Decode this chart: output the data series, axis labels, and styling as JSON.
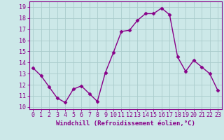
{
  "x": [
    0,
    1,
    2,
    3,
    4,
    5,
    6,
    7,
    8,
    9,
    10,
    11,
    12,
    13,
    14,
    15,
    16,
    17,
    18,
    19,
    20,
    21,
    22,
    23
  ],
  "y": [
    13.5,
    12.8,
    11.8,
    10.8,
    10.4,
    11.6,
    11.9,
    11.2,
    10.5,
    13.1,
    14.9,
    16.8,
    16.9,
    17.8,
    18.4,
    18.4,
    18.9,
    18.3,
    14.5,
    13.2,
    14.2,
    13.6,
    13.0,
    11.5
  ],
  "line_color": "#880088",
  "marker": "D",
  "marker_size": 2.5,
  "background_color": "#cce8e8",
  "grid_color": "#aacccc",
  "xlabel": "Windchill (Refroidissement éolien,°C)",
  "xlabel_fontsize": 6.5,
  "ylim": [
    9.8,
    19.5
  ],
  "xlim": [
    -0.5,
    23.5
  ],
  "yticks": [
    10,
    11,
    12,
    13,
    14,
    15,
    16,
    17,
    18,
    19
  ],
  "xticks": [
    0,
    1,
    2,
    3,
    4,
    5,
    6,
    7,
    8,
    9,
    10,
    11,
    12,
    13,
    14,
    15,
    16,
    17,
    18,
    19,
    20,
    21,
    22,
    23
  ],
  "tick_fontsize": 6.0,
  "tick_color": "#880088",
  "spine_color": "#880088"
}
